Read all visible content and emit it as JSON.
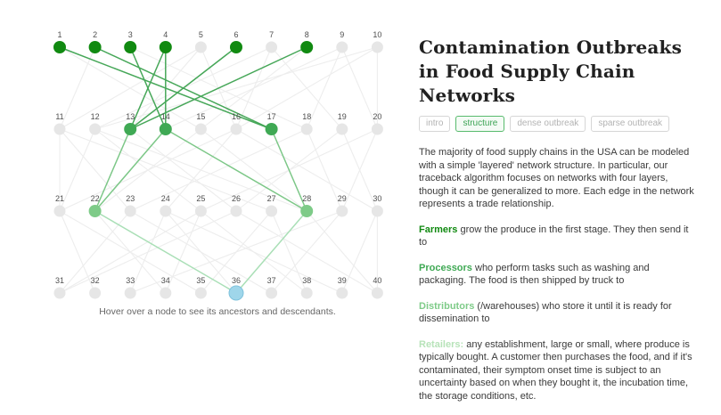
{
  "colors": {
    "layer1": "#118a11",
    "layer2": "#3fa954",
    "layer3": "#7ecb88",
    "layer4": "#b7e3b9",
    "hover_node": "#9fd6ea",
    "hover_node_border": "#7fc2dc",
    "edge_anc1": "#46a758",
    "edge_anc2": "#7cc787",
    "edge_anc3": "#a9dfb6",
    "edge_gray": "#ededed",
    "node_gray": "#e6e6e6",
    "node_label": "#4f4f4f"
  },
  "network": {
    "node_ids": [
      1,
      2,
      3,
      4,
      5,
      6,
      7,
      8,
      9,
      10,
      11,
      12,
      13,
      14,
      15,
      16,
      17,
      18,
      19,
      20,
      21,
      22,
      23,
      24,
      25,
      26,
      27,
      28,
      29,
      30,
      31,
      32,
      33,
      34,
      35,
      36,
      37,
      38,
      39,
      40
    ],
    "highlight": {
      "layer1": [
        1,
        2,
        3,
        4,
        6,
        8
      ],
      "layer2": [
        13,
        14,
        17
      ],
      "layer3": [
        22,
        28
      ],
      "hover": [
        36
      ]
    },
    "edges": {
      "gray": [
        [
          5,
          11
        ],
        [
          5,
          13
        ],
        [
          5,
          16
        ],
        [
          7,
          12
        ],
        [
          7,
          16
        ],
        [
          7,
          19
        ],
        [
          9,
          14
        ],
        [
          9,
          18
        ],
        [
          9,
          20
        ],
        [
          10,
          12
        ],
        [
          10,
          16
        ],
        [
          10,
          20
        ],
        [
          2,
          11
        ],
        [
          3,
          18
        ],
        [
          8,
          15
        ],
        [
          1,
          15
        ],
        [
          11,
          21
        ],
        [
          11,
          23
        ],
        [
          11,
          27
        ],
        [
          12,
          21
        ],
        [
          12,
          25
        ],
        [
          12,
          28
        ],
        [
          15,
          22
        ],
        [
          15,
          28
        ],
        [
          16,
          21
        ],
        [
          16,
          24
        ],
        [
          16,
          30
        ],
        [
          18,
          23
        ],
        [
          18,
          29
        ],
        [
          19,
          26
        ],
        [
          19,
          30
        ],
        [
          20,
          25
        ],
        [
          20,
          29
        ],
        [
          13,
          26
        ],
        [
          21,
          32
        ],
        [
          21,
          35
        ],
        [
          23,
          31
        ],
        [
          23,
          37
        ],
        [
          24,
          33
        ],
        [
          24,
          36
        ],
        [
          24,
          39
        ],
        [
          25,
          31
        ],
        [
          25,
          34
        ],
        [
          25,
          38
        ],
        [
          26,
          31
        ],
        [
          26,
          40
        ],
        [
          27,
          35
        ],
        [
          27,
          38
        ],
        [
          29,
          33
        ],
        [
          29,
          37
        ],
        [
          30,
          39
        ],
        [
          30,
          40
        ],
        [
          22,
          34
        ],
        [
          28,
          40
        ]
      ],
      "ancestor_l1_l2": [
        [
          1,
          17
        ],
        [
          2,
          17
        ],
        [
          3,
          14
        ],
        [
          4,
          14
        ],
        [
          4,
          13
        ],
        [
          6,
          13
        ],
        [
          8,
          13
        ]
      ],
      "ancestor_l2_l3": [
        [
          13,
          22
        ],
        [
          14,
          22
        ],
        [
          14,
          28
        ],
        [
          17,
          28
        ]
      ],
      "ancestor_l3_l4": [
        [
          22,
          36
        ],
        [
          28,
          36
        ]
      ]
    }
  },
  "chart": {
    "caption": "Hover over a node to see its ancestors and descendants."
  },
  "panel": {
    "title": {
      "line1": "Contamination Outbreaks",
      "line2": "in Food Supply Chain Networks"
    },
    "tabs": [
      {
        "label": "intro",
        "active": false
      },
      {
        "label": "structure",
        "active": true
      },
      {
        "label": "dense outbreak",
        "active": false
      },
      {
        "label": "sparse outbreak",
        "active": false
      }
    ],
    "body": {
      "intro": "The majority of food supply chains in the USA can be modeled with a simple 'layered' network structure. In particular, our traceback algorithm focuses on networks with four layers, though it can be generalized to more. Each edge in the network represents a trade relationship.",
      "stages": [
        {
          "lead": "Farmers",
          "text": "grow the produce in the first stage. They then send it to",
          "color_key": "layer1"
        },
        {
          "lead": "Processors",
          "text": "who perform tasks such as washing and packaging. The food is then shipped by truck to",
          "color_key": "layer2"
        },
        {
          "lead": "Distributors",
          "text": "(/warehouses) who store it until it is ready for dissemination to",
          "color_key": "layer3"
        },
        {
          "lead": "Retailers:",
          "text": "any establishment, large or small, where produce is typically bought. A customer then purchases the food, and if it's contaminated, their symptom onset time is subject to an uncertainty based on when they bought it, the incubation time, the storage conditions, etc.",
          "color_key": "layer4"
        }
      ]
    }
  }
}
